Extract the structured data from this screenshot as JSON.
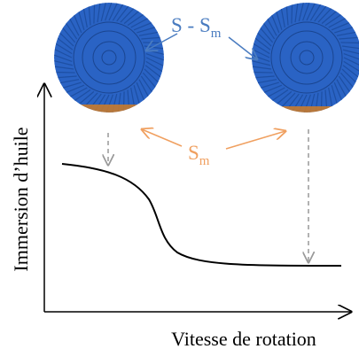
{
  "labels": {
    "s_minus_sm": {
      "text": "S - S",
      "subscript": "m"
    },
    "sm": {
      "text": "S",
      "subscript": "m"
    }
  },
  "axes": {
    "y_label": "Immersion d’huile",
    "x_label": "Vitesse de rotation"
  }
}
